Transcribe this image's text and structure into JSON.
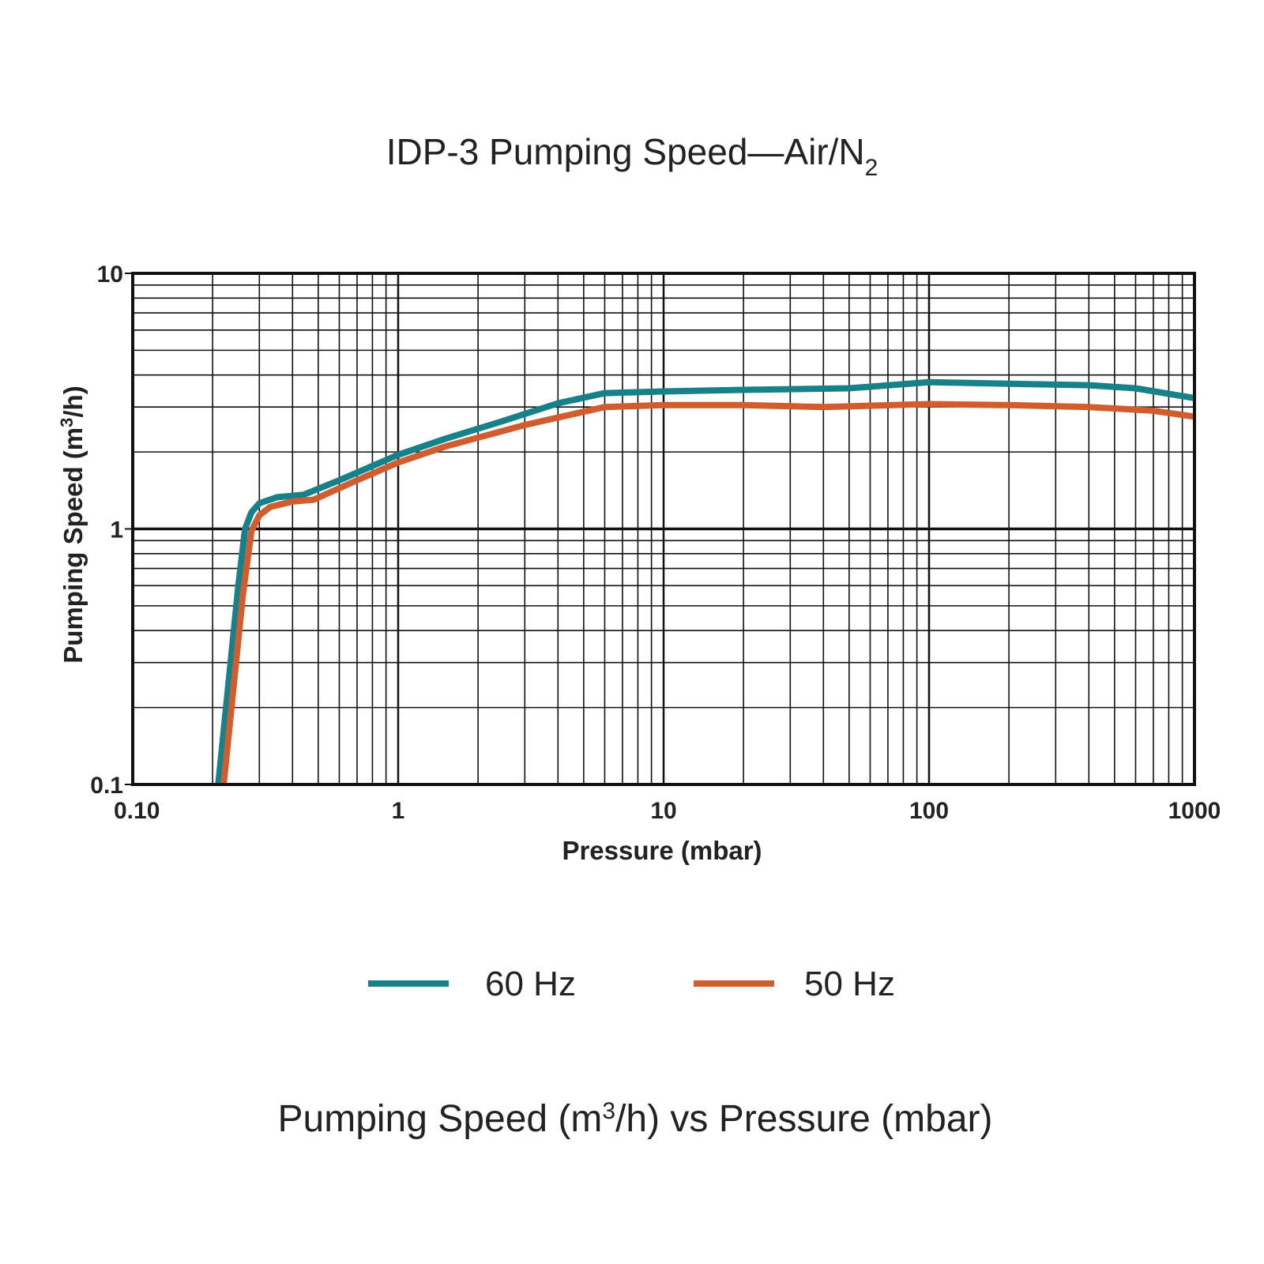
{
  "chart_data": {
    "type": "line",
    "title": {
      "main": "IDP-3 Pumping Speed—Air/N",
      "sub": "2"
    },
    "xlabel": "Pressure (mbar)",
    "ylabel": {
      "pre": "Pumping Speed (m",
      "sup": "3",
      "post": "/h)"
    },
    "x_scale": "log",
    "y_scale": "log",
    "xlim": [
      0.1,
      1000
    ],
    "ylim": [
      0.1,
      10
    ],
    "grid": true,
    "x_ticks": [
      {
        "value": 0.1,
        "label": "0.10"
      },
      {
        "value": 1,
        "label": "1"
      },
      {
        "value": 10,
        "label": "10"
      },
      {
        "value": 100,
        "label": "100"
      },
      {
        "value": 1000,
        "label": "1000"
      }
    ],
    "y_ticks": [
      {
        "value": 0.1,
        "label": "0.1"
      },
      {
        "value": 1,
        "label": "1"
      },
      {
        "value": 10,
        "label": "10"
      }
    ],
    "legend_position": "bottom",
    "series": [
      {
        "name": "60 Hz",
        "color": "#17818a",
        "points": [
          [
            0.21,
            0.1
          ],
          [
            0.25,
            0.6
          ],
          [
            0.265,
            1.0
          ],
          [
            0.28,
            1.16
          ],
          [
            0.3,
            1.26
          ],
          [
            0.35,
            1.33
          ],
          [
            0.44,
            1.36
          ],
          [
            0.6,
            1.55
          ],
          [
            1.0,
            1.95
          ],
          [
            1.5,
            2.25
          ],
          [
            2.5,
            2.65
          ],
          [
            4.0,
            3.1
          ],
          [
            6.0,
            3.4
          ],
          [
            10,
            3.45
          ],
          [
            20,
            3.5
          ],
          [
            50,
            3.55
          ],
          [
            100,
            3.75
          ],
          [
            200,
            3.7
          ],
          [
            400,
            3.65
          ],
          [
            600,
            3.55
          ],
          [
            1000,
            3.25
          ]
        ]
      },
      {
        "name": "50 Hz",
        "color": "#d15c2e",
        "points": [
          [
            0.22,
            0.1
          ],
          [
            0.26,
            0.55
          ],
          [
            0.28,
            0.98
          ],
          [
            0.3,
            1.13
          ],
          [
            0.33,
            1.22
          ],
          [
            0.4,
            1.28
          ],
          [
            0.48,
            1.3
          ],
          [
            0.7,
            1.55
          ],
          [
            1.0,
            1.82
          ],
          [
            1.5,
            2.1
          ],
          [
            3.0,
            2.55
          ],
          [
            6.0,
            3.0
          ],
          [
            10,
            3.05
          ],
          [
            20,
            3.05
          ],
          [
            40,
            3.0
          ],
          [
            100,
            3.08
          ],
          [
            200,
            3.05
          ],
          [
            400,
            3.0
          ],
          [
            700,
            2.9
          ],
          [
            1000,
            2.75
          ]
        ]
      }
    ]
  },
  "caption": {
    "pre": "Pumping Speed (m",
    "sup": "3",
    "post": "/h) vs Pressure (mbar)"
  }
}
